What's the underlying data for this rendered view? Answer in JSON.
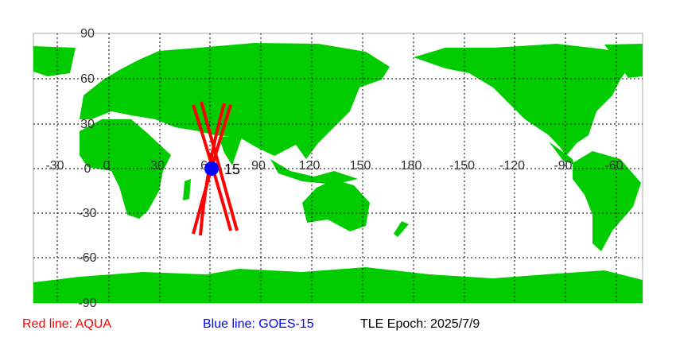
{
  "map": {
    "lon_labels": [
      "-30",
      "0",
      "30",
      "60",
      "90",
      "120",
      "150",
      "180",
      "-150",
      "-120",
      "-90",
      "-60"
    ],
    "lat_labels": [
      "90",
      "60",
      "30",
      "0",
      "-30",
      "-60",
      "-90"
    ],
    "land_color": "#00cc00",
    "satellites": [
      {
        "name": "AQUA",
        "label": "15",
        "track_color": "#ff0000"
      },
      {
        "name": "GOES-15",
        "label": "15",
        "marker_color": "#0000ff",
        "lon": 60,
        "lat": 0
      }
    ]
  },
  "legend": {
    "red": "Red line: AQUA",
    "blue": "Blue line: GOES-15",
    "epoch": "TLE Epoch: 2025/7/9"
  }
}
